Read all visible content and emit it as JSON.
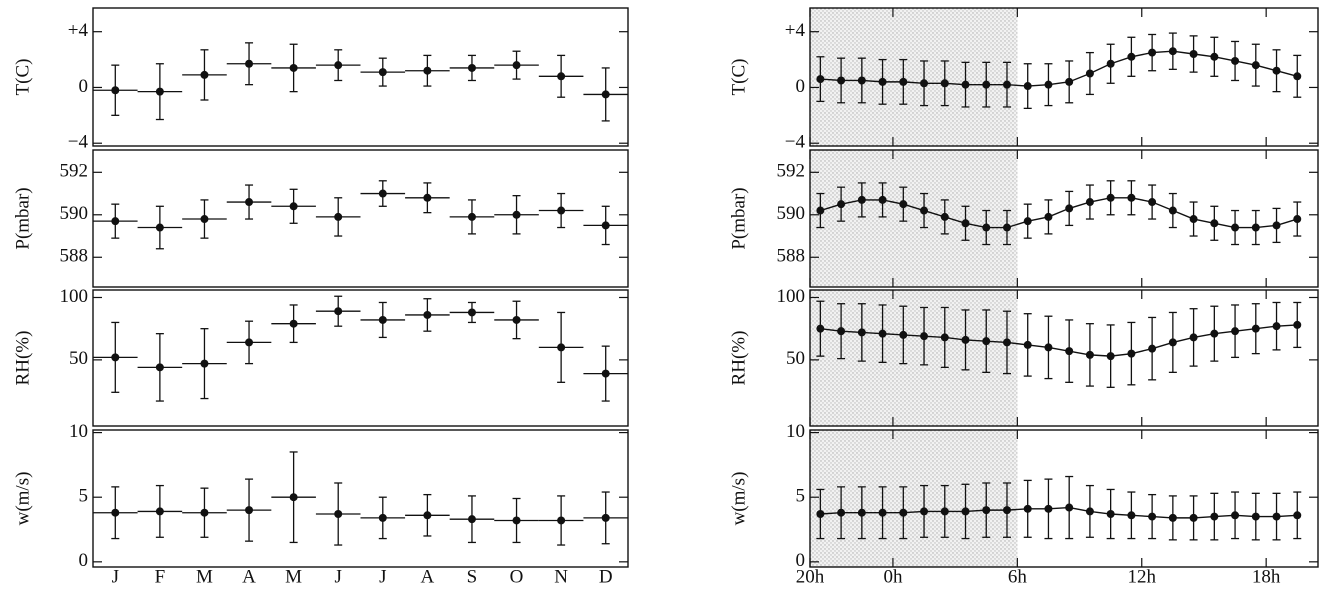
{
  "chart_data": [
    {
      "type": "monthly",
      "categories": [
        "J",
        "F",
        "M",
        "A",
        "M",
        "J",
        "J",
        "A",
        "S",
        "O",
        "N",
        "D"
      ],
      "panels": [
        {
          "ylabel": "T(C)",
          "ylim": [
            -4.2,
            5.7
          ],
          "yticks": [
            {
              "value": -4,
              "label": "−4"
            },
            0,
            {
              "value": 4,
              "label": "+4"
            }
          ],
          "values": [
            -0.2,
            -0.3,
            0.9,
            1.7,
            1.4,
            1.6,
            1.1,
            1.2,
            1.4,
            1.6,
            0.8,
            -0.5
          ],
          "errors": [
            1.8,
            2.0,
            1.8,
            1.5,
            1.7,
            1.1,
            1.0,
            1.1,
            0.9,
            1.0,
            1.5,
            1.9
          ]
        },
        {
          "ylabel": "P(mbar)",
          "ylim": [
            586.6,
            593.05
          ],
          "yticks": [
            588,
            590,
            592
          ],
          "values": [
            589.7,
            589.4,
            589.8,
            590.6,
            590.4,
            589.9,
            591.0,
            590.8,
            589.9,
            590.0,
            590.2,
            589.5
          ],
          "errors": [
            0.8,
            1.0,
            0.9,
            0.8,
            0.8,
            0.9,
            0.6,
            0.7,
            0.8,
            0.9,
            0.8,
            0.9
          ]
        },
        {
          "ylabel": "RH(%)",
          "ylim": [
            -3,
            106
          ],
          "yticks": [
            50,
            100
          ],
          "values": [
            52,
            44,
            47,
            64,
            79,
            89,
            82,
            86,
            88,
            82,
            60,
            39
          ],
          "errors": [
            28,
            27,
            28,
            17,
            15,
            12,
            14,
            13,
            8,
            15,
            28,
            22
          ]
        },
        {
          "ylabel": "w(m/s)",
          "ylim": [
            -0.4,
            10.2
          ],
          "yticks": [
            0,
            5,
            10
          ],
          "values": [
            3.8,
            3.9,
            3.8,
            4.0,
            5.0,
            3.7,
            3.4,
            3.6,
            3.3,
            3.2,
            3.2,
            3.4
          ],
          "errors": [
            2.0,
            2.0,
            1.9,
            2.4,
            3.5,
            2.4,
            1.6,
            1.6,
            1.8,
            1.7,
            1.9,
            2.0
          ]
        }
      ]
    },
    {
      "type": "diurnal",
      "x": [
        20.5,
        21.5,
        22.5,
        23.5,
        24.5,
        25.5,
        26.5,
        27.5,
        28.5,
        29.5,
        30.5,
        31.5,
        32.5,
        33.5,
        34.5,
        35.5,
        36.5,
        37.5,
        38.5,
        39.5,
        40.5,
        41.5,
        42.5,
        43.5
      ],
      "xlim": [
        20,
        44.5
      ],
      "xticks": [
        {
          "value": 20,
          "label": "20h"
        },
        {
          "value": 24,
          "label": "0h"
        },
        {
          "value": 30,
          "label": "6h"
        },
        {
          "value": 36,
          "label": "12h"
        },
        {
          "value": 42,
          "label": "18h"
        }
      ],
      "shade": [
        20,
        30
      ],
      "panels": [
        {
          "ylabel": "T(C)",
          "ylim": [
            -4.2,
            5.7
          ],
          "yticks": [
            {
              "value": -4,
              "label": "−4"
            },
            0,
            {
              "value": 4,
              "label": "+4"
            }
          ],
          "values": [
            0.6,
            0.5,
            0.5,
            0.4,
            0.4,
            0.3,
            0.3,
            0.2,
            0.2,
            0.2,
            0.1,
            0.2,
            0.4,
            1.0,
            1.7,
            2.2,
            2.5,
            2.6,
            2.4,
            2.2,
            1.9,
            1.6,
            1.2,
            0.8
          ],
          "errors": [
            1.6,
            1.6,
            1.6,
            1.6,
            1.6,
            1.6,
            1.6,
            1.6,
            1.6,
            1.6,
            1.6,
            1.5,
            1.5,
            1.5,
            1.4,
            1.4,
            1.3,
            1.3,
            1.3,
            1.4,
            1.4,
            1.5,
            1.5,
            1.5
          ]
        },
        {
          "ylabel": "P(mbar)",
          "ylim": [
            586.6,
            593.05
          ],
          "yticks": [
            588,
            590,
            592
          ],
          "values": [
            590.2,
            590.5,
            590.7,
            590.7,
            590.5,
            590.2,
            589.9,
            589.6,
            589.4,
            589.4,
            589.7,
            589.9,
            590.3,
            590.6,
            590.8,
            590.8,
            590.6,
            590.2,
            589.8,
            589.6,
            589.4,
            589.4,
            589.5,
            589.8
          ],
          "errors": [
            0.8,
            0.8,
            0.8,
            0.8,
            0.8,
            0.8,
            0.8,
            0.8,
            0.8,
            0.8,
            0.8,
            0.8,
            0.8,
            0.8,
            0.8,
            0.8,
            0.8,
            0.8,
            0.8,
            0.8,
            0.8,
            0.8,
            0.8,
            0.8
          ]
        },
        {
          "ylabel": "RH(%)",
          "ylim": [
            -3,
            106
          ],
          "yticks": [
            50,
            100
          ],
          "values": [
            75,
            73,
            72,
            71,
            70,
            69,
            68,
            66,
            65,
            64,
            62,
            60,
            57,
            54,
            53,
            55,
            59,
            64,
            68,
            71,
            73,
            75,
            77,
            78
          ],
          "errors": [
            22,
            22,
            23,
            23,
            23,
            23,
            24,
            24,
            25,
            25,
            25,
            25,
            25,
            25,
            25,
            25,
            25,
            24,
            23,
            22,
            21,
            20,
            19,
            18
          ]
        },
        {
          "ylabel": "w(m/s)",
          "ylim": [
            -0.4,
            10.2
          ],
          "yticks": [
            0,
            5,
            10
          ],
          "values": [
            3.7,
            3.8,
            3.8,
            3.8,
            3.8,
            3.9,
            3.9,
            3.9,
            4.0,
            4.0,
            4.1,
            4.1,
            4.2,
            3.9,
            3.7,
            3.6,
            3.5,
            3.4,
            3.4,
            3.5,
            3.6,
            3.5,
            3.5,
            3.6
          ],
          "errors": [
            1.9,
            2.0,
            2.0,
            2.0,
            2.0,
            2.0,
            2.0,
            2.1,
            2.1,
            2.1,
            2.2,
            2.3,
            2.4,
            2.0,
            1.9,
            1.8,
            1.7,
            1.7,
            1.7,
            1.8,
            1.8,
            1.8,
            1.8,
            1.8
          ]
        }
      ]
    }
  ]
}
